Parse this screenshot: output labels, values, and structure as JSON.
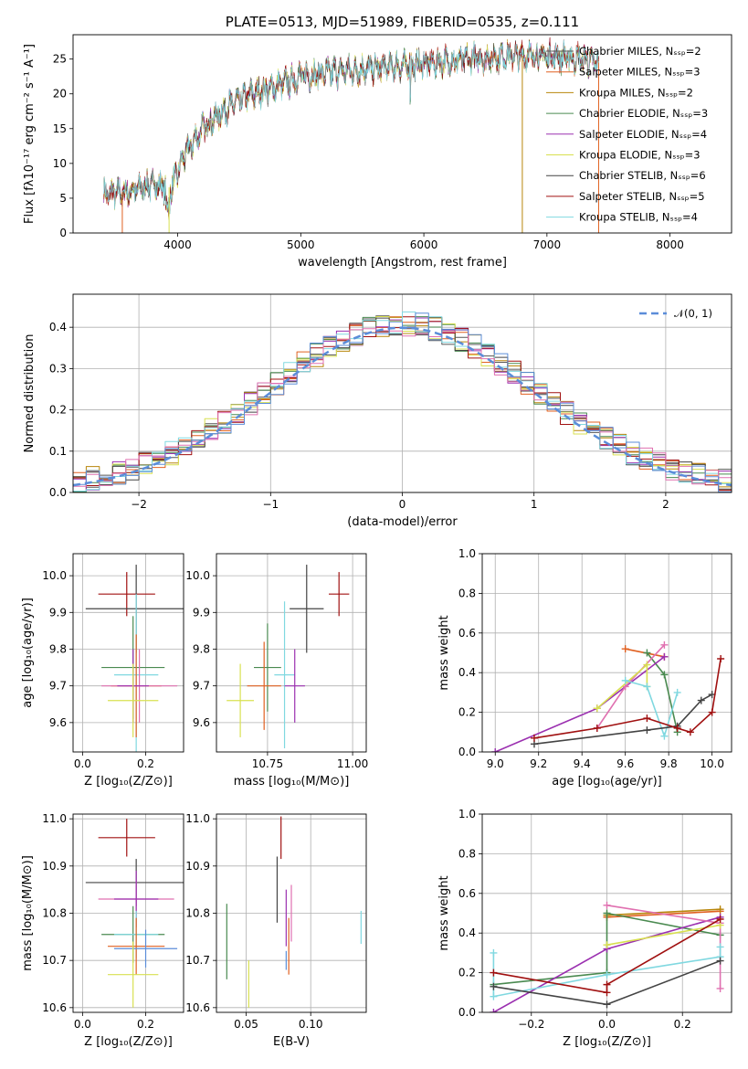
{
  "chart_data": [
    {
      "type": "line",
      "title": "PLATE=0513, MJD=51989, FIBERID=0535, z=0.111",
      "xlabel": "wavelength [Angstrom, rest frame]",
      "ylabel": "Flux [fλ10⁻¹⁷ erg cm⁻² s⁻¹ A⁻¹]",
      "xlim": [
        3150,
        8500
      ],
      "ylim": [
        0,
        28.5
      ],
      "xticks": [
        "4000",
        "5000",
        "6000",
        "7000",
        "8000"
      ],
      "yticks": [
        "0",
        "5",
        "10",
        "15",
        "20",
        "25"
      ],
      "legend_position": "right",
      "series": [
        {
          "name": "Chabrier MILES, N_SSP=2",
          "color": "#555555"
        },
        {
          "name": "Salpeter MILES, N_SSP=3",
          "color": "#e06020"
        },
        {
          "name": "Kroupa MILES, N_SSP=2",
          "color": "#b8860b"
        },
        {
          "name": "Chabrier ELODIE, N_SSP=3",
          "color": "#4a8a50"
        },
        {
          "name": "Salpeter ELODIE, N_SSP=4",
          "color": "#9b30b0"
        },
        {
          "name": "Kroupa ELODIE, N_SSP=3",
          "color": "#d8e050"
        },
        {
          "name": "Chabrier STELIB, N_SSP=6",
          "color": "#444444"
        },
        {
          "name": "Salpeter STELIB, N_SSP=5",
          "color": "#a01010"
        },
        {
          "name": "Kroupa STELIB, N_SSP=4",
          "color": "#80d8e0"
        }
      ],
      "continuum": {
        "x": [
          3400,
          3600,
          3800,
          3950,
          4050,
          4200,
          4400,
          4600,
          4800,
          5000,
          5200,
          5500,
          5800,
          6100,
          6400,
          6700,
          7000,
          7300,
          7400
        ],
        "y": [
          5.5,
          6,
          7,
          6.5,
          11,
          15,
          18,
          20,
          21,
          22.5,
          23,
          23.5,
          24,
          24.5,
          25,
          25.5,
          25.5,
          25,
          24.5
        ]
      }
    },
    {
      "type": "line",
      "xlabel": "(data-model)/error",
      "ylabel": "Normed distribution",
      "xlim": [
        -2.5,
        2.5
      ],
      "ylim": [
        0,
        0.48
      ],
      "xticks": [
        "−2",
        "−1",
        "0",
        "1",
        "2"
      ],
      "yticks": [
        "0.0",
        "0.1",
        "0.2",
        "0.3",
        "0.4"
      ],
      "legend_label": "𝒩(0, 1)",
      "gaussian_color": "#5b8dd9",
      "hist_colors": [
        "#555555",
        "#e06020",
        "#b8860b",
        "#4a8a50",
        "#9b30b0",
        "#d8e050",
        "#444444",
        "#a01010",
        "#80d8e0",
        "#e070b0",
        "#5b8dd9"
      ]
    },
    {
      "type": "scatter",
      "xlabel": "Z [log₁₀(Z/Z⊙)]",
      "ylabel": "age  [log₁₀(age/yr)]",
      "xlim": [
        -0.03,
        0.32
      ],
      "ylim": [
        9.52,
        10.06
      ],
      "xticks": [
        "0.0",
        "0.2"
      ],
      "yticks": [
        "9.6",
        "9.7",
        "9.8",
        "9.9",
        "10.0"
      ],
      "points": [
        {
          "x": 0.14,
          "xerr": 0.09,
          "y": 9.95,
          "yerr": 0.06,
          "color": "#a01010"
        },
        {
          "x": 0.17,
          "xerr": 0.16,
          "y": 9.91,
          "yerr": 0.12,
          "color": "#444444"
        },
        {
          "x": 0.16,
          "xerr": 0.1,
          "y": 9.75,
          "yerr": 0.14,
          "color": "#4a8a50"
        },
        {
          "x": 0.17,
          "xerr": 0.07,
          "y": 9.73,
          "yerr": 0.22,
          "color": "#80d8e0"
        },
        {
          "x": 0.17,
          "xerr": 0.08,
          "y": 9.7,
          "yerr": 0.14,
          "color": "#e06020"
        },
        {
          "x": 0.18,
          "xerr": 0.12,
          "y": 9.7,
          "yerr": 0.1,
          "color": "#e070b0"
        },
        {
          "x": 0.16,
          "xerr": 0.05,
          "y": 9.7,
          "yerr": 0.1,
          "color": "#9b30b0"
        },
        {
          "x": 0.16,
          "xerr": 0.08,
          "y": 9.66,
          "yerr": 0.1,
          "color": "#d8e050"
        }
      ]
    },
    {
      "type": "scatter",
      "xlabel": "mass [log₁₀(M/M⊙)]",
      "xlim": [
        10.6,
        11.04
      ],
      "ylim": [
        9.52,
        10.06
      ],
      "xticks": [
        "10.75",
        "11.00"
      ],
      "yticks": [
        "9.6",
        "9.7",
        "9.8",
        "9.9",
        "10.0"
      ],
      "points": [
        {
          "x": 10.96,
          "xerr": 0.03,
          "y": 9.95,
          "yerr": 0.06,
          "color": "#a01010"
        },
        {
          "x": 10.865,
          "xerr": 0.05,
          "y": 9.91,
          "yerr": 0.12,
          "color": "#444444"
        },
        {
          "x": 10.8,
          "xerr": 0.03,
          "y": 9.73,
          "yerr": 0.2,
          "color": "#80d8e0"
        },
        {
          "x": 10.75,
          "xerr": 0.04,
          "y": 9.75,
          "yerr": 0.12,
          "color": "#4a8a50"
        },
        {
          "x": 10.74,
          "xerr": 0.05,
          "y": 9.7,
          "yerr": 0.12,
          "color": "#e06020"
        },
        {
          "x": 10.83,
          "xerr": 0.03,
          "y": 9.7,
          "yerr": 0.1,
          "color": "#9b30b0"
        },
        {
          "x": 10.67,
          "xerr": 0.04,
          "y": 9.66,
          "yerr": 0.1,
          "color": "#d8e050"
        }
      ]
    },
    {
      "type": "line",
      "xlabel": "age  [log₁₀(age/yr)]",
      "ylabel": "mass weight",
      "xlim": [
        8.94,
        10.09
      ],
      "ylim": [
        0,
        1
      ],
      "xticks": [
        "9.0",
        "9.2",
        "9.4",
        "9.6",
        "9.8",
        "10.0"
      ],
      "yticks": [
        "0.0",
        "0.2",
        "0.4",
        "0.6",
        "0.8",
        "1.0"
      ],
      "series": [
        {
          "color": "#e06020",
          "x": [
            9.6,
            9.78
          ],
          "y": [
            0.52,
            0.48
          ]
        },
        {
          "color": "#4a8a50",
          "x": [
            9.7,
            9.78,
            9.84
          ],
          "y": [
            0.5,
            0.39,
            0.1
          ]
        },
        {
          "color": "#9b30b0",
          "x": [
            9.0,
            9.47,
            9.78
          ],
          "y": [
            0.0,
            0.22,
            0.48
          ]
        },
        {
          "color": "#e070b0",
          "x": [
            9.47,
            9.6,
            9.78
          ],
          "y": [
            0.12,
            0.33,
            0.54
          ]
        },
        {
          "color": "#d8e050",
          "x": [
            9.47,
            9.7,
            9.7
          ],
          "y": [
            0.22,
            0.44,
            0.33
          ]
        },
        {
          "color": "#80d8e0",
          "x": [
            9.6,
            9.7,
            9.78,
            9.84
          ],
          "y": [
            0.36,
            0.33,
            0.08,
            0.3
          ]
        },
        {
          "color": "#444444",
          "x": [
            9.18,
            9.7,
            9.84,
            9.95,
            10.0
          ],
          "y": [
            0.04,
            0.11,
            0.13,
            0.26,
            0.29
          ]
        },
        {
          "color": "#a01010",
          "x": [
            9.18,
            9.47,
            9.7,
            9.84,
            9.9,
            10.0,
            10.04
          ],
          "y": [
            0.07,
            0.12,
            0.17,
            0.12,
            0.1,
            0.2,
            0.47
          ]
        }
      ]
    },
    {
      "type": "scatter",
      "xlabel": "Z [log₁₀(Z/Z⊙)]",
      "ylabel": "mass [log₁₀(M/M⊙)]",
      "xlim": [
        -0.03,
        0.32
      ],
      "ylim": [
        10.59,
        11.01
      ],
      "xticks": [
        "0.0",
        "0.2"
      ],
      "yticks": [
        "10.6",
        "10.7",
        "10.8",
        "10.9",
        "11.0"
      ],
      "points": [
        {
          "x": 0.14,
          "xerr": 0.09,
          "y": 10.96,
          "yerr": 0.04,
          "color": "#a01010"
        },
        {
          "x": 0.17,
          "xerr": 0.16,
          "y": 10.865,
          "yerr": 0.05,
          "color": "#444444"
        },
        {
          "x": 0.17,
          "xerr": 0.12,
          "y": 10.83,
          "yerr": 0.04,
          "color": "#e070b0"
        },
        {
          "x": 0.17,
          "xerr": 0.07,
          "y": 10.83,
          "yerr": 0.06,
          "color": "#9b30b0"
        },
        {
          "x": 0.16,
          "xerr": 0.1,
          "y": 10.755,
          "yerr": 0.06,
          "color": "#4a8a50"
        },
        {
          "x": 0.17,
          "xerr": 0.07,
          "y": 10.755,
          "yerr": 0.05,
          "color": "#80d8e0"
        },
        {
          "x": 0.17,
          "xerr": 0.09,
          "y": 10.73,
          "yerr": 0.06,
          "color": "#e06020"
        },
        {
          "x": 0.2,
          "xerr": 0.1,
          "y": 10.725,
          "yerr": 0.04,
          "color": "#5b8dd9"
        },
        {
          "x": 0.16,
          "xerr": 0.08,
          "y": 10.67,
          "yerr": 0.07,
          "color": "#d8e050"
        }
      ]
    },
    {
      "type": "scatter",
      "xlabel": "E(B-V)",
      "xlim": [
        0.027,
        0.143
      ],
      "ylim": [
        10.59,
        11.01
      ],
      "xticks": [
        "0.05",
        "0.10"
      ],
      "yticks": [
        "10.6",
        "10.7",
        "10.8",
        "10.9",
        "11.0"
      ],
      "points": [
        {
          "x": 0.077,
          "yerr": 0.045,
          "y": 10.96,
          "color": "#a01010"
        },
        {
          "x": 0.074,
          "yerr": 0.07,
          "y": 10.85,
          "color": "#444444"
        },
        {
          "x": 0.085,
          "yerr": 0.06,
          "y": 10.8,
          "color": "#e070b0"
        },
        {
          "x": 0.081,
          "yerr": 0.06,
          "y": 10.79,
          "color": "#9b30b0"
        },
        {
          "x": 0.035,
          "yerr": 0.08,
          "y": 10.74,
          "color": "#4a8a50"
        },
        {
          "x": 0.083,
          "yerr": 0.06,
          "y": 10.73,
          "color": "#e06020"
        },
        {
          "x": 0.139,
          "yerr": 0.035,
          "y": 10.77,
          "color": "#80d8e0"
        },
        {
          "x": 0.081,
          "yerr": 0.02,
          "y": 10.7,
          "color": "#5b8dd9"
        },
        {
          "x": 0.052,
          "yerr": 0.05,
          "y": 10.65,
          "color": "#d8e050"
        }
      ]
    },
    {
      "type": "line",
      "xlabel": "Z [log₁₀(Z/Z⊙)]",
      "ylabel": "mass weight",
      "xlim": [
        -0.33,
        0.33
      ],
      "ylim": [
        0,
        1
      ],
      "xticks": [
        "−0.2",
        "0.0",
        "0.2"
      ],
      "yticks": [
        "0.0",
        "0.2",
        "0.4",
        "0.6",
        "0.8",
        "1.0"
      ],
      "series": [
        {
          "color": "#e06020",
          "x": [
            0.0,
            0.3
          ],
          "y": [
            0.48,
            0.51
          ]
        },
        {
          "color": "#b8860b",
          "x": [
            0.0,
            0.3
          ],
          "y": [
            0.49,
            0.52
          ]
        },
        {
          "color": "#4a8a50",
          "x": [
            -0.3,
            0.0,
            0.0,
            0.3
          ],
          "y": [
            0.14,
            0.2,
            0.5,
            0.39
          ]
        },
        {
          "color": "#9b30b0",
          "x": [
            -0.3,
            0.0,
            0.3
          ],
          "y": [
            0.0,
            0.32,
            0.48
          ]
        },
        {
          "color": "#e070b0",
          "x": [
            0.0,
            0.3,
            0.3
          ],
          "y": [
            0.54,
            0.45,
            0.12
          ]
        },
        {
          "color": "#d8e050",
          "x": [
            0.0,
            0.3
          ],
          "y": [
            0.34,
            0.44
          ]
        },
        {
          "color": "#80d8e0",
          "x": [
            -0.3,
            -0.3,
            0.0,
            0.3,
            0.3
          ],
          "y": [
            0.3,
            0.08,
            0.19,
            0.28,
            0.33
          ]
        },
        {
          "color": "#444444",
          "x": [
            -0.3,
            0.0,
            0.3
          ],
          "y": [
            0.13,
            0.04,
            0.26
          ]
        },
        {
          "color": "#a01010",
          "x": [
            -0.3,
            0.0,
            0.0,
            0.3
          ],
          "y": [
            0.2,
            0.1,
            0.14,
            0.47
          ]
        }
      ]
    }
  ]
}
